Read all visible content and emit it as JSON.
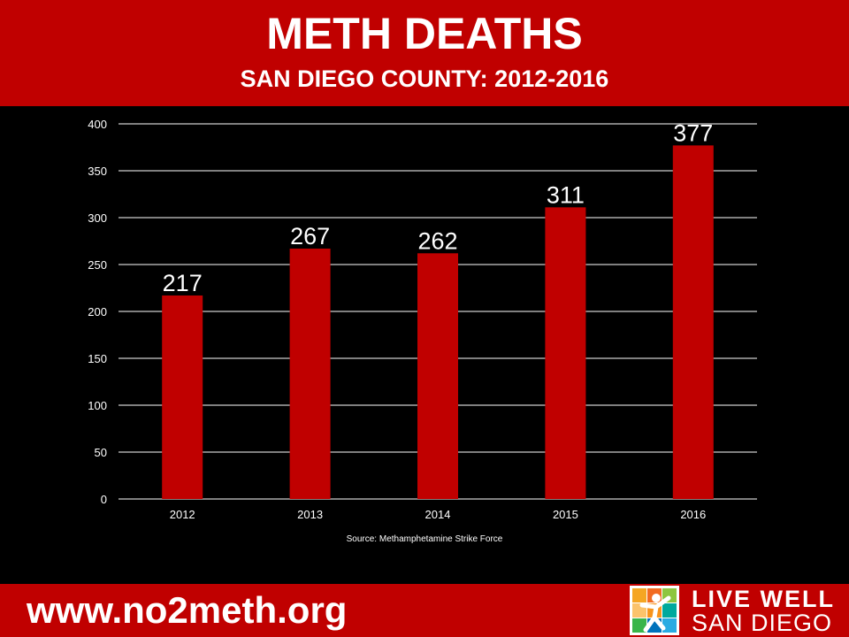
{
  "header": {
    "title": "METH DEATHS",
    "subtitle": "SAN DIEGO COUNTY: 2012-2016"
  },
  "chart_data": {
    "type": "bar",
    "categories": [
      "2012",
      "2013",
      "2014",
      "2015",
      "2016"
    ],
    "values": [
      217,
      267,
      262,
      311,
      377
    ],
    "data_labels": [
      "217",
      "267",
      "262",
      "311",
      "377"
    ],
    "ylim": [
      0,
      400
    ],
    "yticks": [
      0,
      50,
      100,
      150,
      200,
      250,
      300,
      350,
      400
    ],
    "grid": true,
    "legend": "none",
    "bar_color": "#C00000",
    "background": "#000000"
  },
  "source": "Source: Methamphetamine  Strike Force",
  "footer": {
    "url": "www.no2meth.org",
    "logo_line1": "LIVE WELL",
    "logo_line2": "SAN DIEGO",
    "logo_icon": "live-well-person-icon"
  }
}
